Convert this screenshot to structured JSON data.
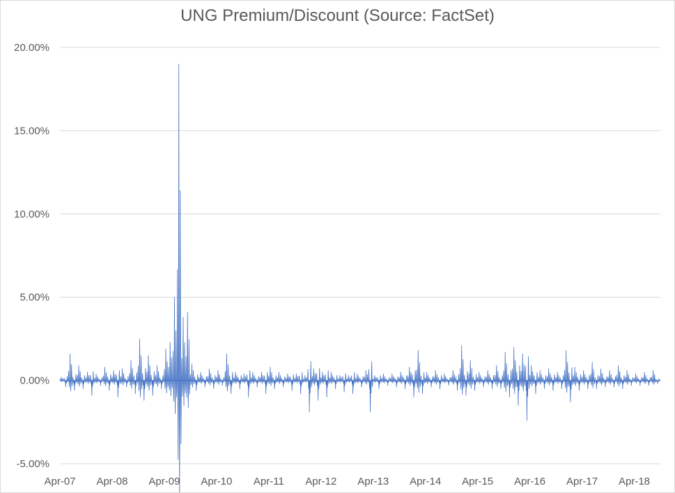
{
  "chart_data": {
    "type": "area",
    "title": "UNG Premium/Discount (Source: FactSet)",
    "xlabel": "",
    "ylabel": "",
    "x_ticks": [
      "Apr-07",
      "Apr-08",
      "Apr-09",
      "Apr-10",
      "Apr-11",
      "Apr-12",
      "Apr-13",
      "Apr-14",
      "Apr-15",
      "Apr-16",
      "Apr-17",
      "Apr-18"
    ],
    "y_ticks": [
      "20.00%",
      "15.00%",
      "10.00%",
      "5.00%",
      "0.00%",
      "-5.00%"
    ],
    "ylim": [
      -5,
      20
    ],
    "y_unit": "%",
    "grid": true,
    "legend": "none",
    "color": "#4472c4",
    "series": [
      {
        "values": [
          {
            "x": "2007-04",
            "y": 0.2
          },
          {
            "x": "2007-05",
            "y": -0.4
          },
          {
            "x": "2007-06",
            "y": 1.6
          },
          {
            "x": "2007-07",
            "y": -0.6
          },
          {
            "x": "2007-08",
            "y": 0.9
          },
          {
            "x": "2007-09",
            "y": -0.5
          },
          {
            "x": "2007-10",
            "y": 0.5
          },
          {
            "x": "2007-11",
            "y": -0.9
          },
          {
            "x": "2007-12",
            "y": 0.4
          },
          {
            "x": "2008-01",
            "y": -0.3
          },
          {
            "x": "2008-02",
            "y": 0.8
          },
          {
            "x": "2008-03",
            "y": -0.6
          },
          {
            "x": "2008-04",
            "y": 0.6
          },
          {
            "x": "2008-05",
            "y": -1.0
          },
          {
            "x": "2008-06",
            "y": 0.7
          },
          {
            "x": "2008-07",
            "y": -0.4
          },
          {
            "x": "2008-08",
            "y": 1.2
          },
          {
            "x": "2008-09",
            "y": -0.8
          },
          {
            "x": "2008-10",
            "y": 2.5
          },
          {
            "x": "2008-11",
            "y": -1.2
          },
          {
            "x": "2008-12",
            "y": 1.5
          },
          {
            "x": "2009-01",
            "y": -0.9
          },
          {
            "x": "2009-02",
            "y": 0.9
          },
          {
            "x": "2009-03",
            "y": -0.5
          },
          {
            "x": "2009-04",
            "y": 1.9
          },
          {
            "x": "2009-05",
            "y": 2.3
          },
          {
            "x": "2009-06",
            "y": 5.0
          },
          {
            "x": "2009-07",
            "y": 19.0
          },
          {
            "x": "2009-08",
            "y": 3.8
          },
          {
            "x": "2009-09",
            "y": 4.1
          },
          {
            "x": "2009-10",
            "y": 1.0
          },
          {
            "x": "2009-11",
            "y": -0.6
          },
          {
            "x": "2009-12",
            "y": 0.5
          },
          {
            "x": "2010-01",
            "y": -0.4
          },
          {
            "x": "2010-02",
            "y": 0.7
          },
          {
            "x": "2010-03",
            "y": -0.5
          },
          {
            "x": "2010-04",
            "y": 0.6
          },
          {
            "x": "2010-05",
            "y": -0.3
          },
          {
            "x": "2010-06",
            "y": 1.6
          },
          {
            "x": "2010-07",
            "y": -0.8
          },
          {
            "x": "2010-08",
            "y": 0.5
          },
          {
            "x": "2010-09",
            "y": -0.5
          },
          {
            "x": "2010-10",
            "y": 0.4
          },
          {
            "x": "2010-11",
            "y": -1.0
          },
          {
            "x": "2010-12",
            "y": 0.5
          },
          {
            "x": "2011-01",
            "y": -0.4
          },
          {
            "x": "2011-02",
            "y": 0.5
          },
          {
            "x": "2011-03",
            "y": -0.8
          },
          {
            "x": "2011-04",
            "y": 0.8
          },
          {
            "x": "2011-05",
            "y": -0.5
          },
          {
            "x": "2011-06",
            "y": 0.5
          },
          {
            "x": "2011-07",
            "y": -0.4
          },
          {
            "x": "2011-08",
            "y": 0.4
          },
          {
            "x": "2011-09",
            "y": -0.6
          },
          {
            "x": "2011-10",
            "y": 0.4
          },
          {
            "x": "2011-11",
            "y": -0.8
          },
          {
            "x": "2011-12",
            "y": 0.3
          },
          {
            "x": "2012-01",
            "y": -1.9
          },
          {
            "x": "2012-02",
            "y": 0.7
          },
          {
            "x": "2012-03",
            "y": -1.2
          },
          {
            "x": "2012-04",
            "y": 0.5
          },
          {
            "x": "2012-05",
            "y": -1.0
          },
          {
            "x": "2012-06",
            "y": 0.5
          },
          {
            "x": "2012-07",
            "y": -0.5
          },
          {
            "x": "2012-08",
            "y": 0.3
          },
          {
            "x": "2012-09",
            "y": -0.7
          },
          {
            "x": "2012-10",
            "y": 0.3
          },
          {
            "x": "2012-11",
            "y": -0.8
          },
          {
            "x": "2012-12",
            "y": 0.4
          },
          {
            "x": "2013-01",
            "y": -0.4
          },
          {
            "x": "2013-02",
            "y": 0.6
          },
          {
            "x": "2013-03",
            "y": -1.9
          },
          {
            "x": "2013-04",
            "y": 0.3
          },
          {
            "x": "2013-05",
            "y": -0.5
          },
          {
            "x": "2013-06",
            "y": 0.4
          },
          {
            "x": "2013-07",
            "y": -0.3
          },
          {
            "x": "2013-08",
            "y": 0.4
          },
          {
            "x": "2013-09",
            "y": -0.4
          },
          {
            "x": "2013-10",
            "y": 0.5
          },
          {
            "x": "2013-11",
            "y": -0.5
          },
          {
            "x": "2013-12",
            "y": 0.8
          },
          {
            "x": "2014-01",
            "y": -1.0
          },
          {
            "x": "2014-02",
            "y": 1.8
          },
          {
            "x": "2014-03",
            "y": -0.8
          },
          {
            "x": "2014-04",
            "y": 0.5
          },
          {
            "x": "2014-05",
            "y": -0.4
          },
          {
            "x": "2014-06",
            "y": 0.6
          },
          {
            "x": "2014-07",
            "y": -0.5
          },
          {
            "x": "2014-08",
            "y": 0.4
          },
          {
            "x": "2014-09",
            "y": -0.3
          },
          {
            "x": "2014-10",
            "y": 0.6
          },
          {
            "x": "2014-11",
            "y": -0.6
          },
          {
            "x": "2014-12",
            "y": 2.1
          },
          {
            "x": "2015-01",
            "y": -0.9
          },
          {
            "x": "2015-02",
            "y": 1.2
          },
          {
            "x": "2015-03",
            "y": -0.6
          },
          {
            "x": "2015-04",
            "y": 0.5
          },
          {
            "x": "2015-05",
            "y": -0.4
          },
          {
            "x": "2015-06",
            "y": 0.6
          },
          {
            "x": "2015-07",
            "y": -0.5
          },
          {
            "x": "2015-08",
            "y": 0.9
          },
          {
            "x": "2015-09",
            "y": -0.5
          },
          {
            "x": "2015-10",
            "y": 1.7
          },
          {
            "x": "2015-11",
            "y": -1.0
          },
          {
            "x": "2015-12",
            "y": 2.0
          },
          {
            "x": "2016-01",
            "y": -1.5
          },
          {
            "x": "2016-02",
            "y": 1.6
          },
          {
            "x": "2016-03",
            "y": -2.4
          },
          {
            "x": "2016-04",
            "y": 0.9
          },
          {
            "x": "2016-05",
            "y": -0.8
          },
          {
            "x": "2016-06",
            "y": 0.6
          },
          {
            "x": "2016-07",
            "y": -0.5
          },
          {
            "x": "2016-08",
            "y": 0.7
          },
          {
            "x": "2016-09",
            "y": -0.6
          },
          {
            "x": "2016-10",
            "y": 0.5
          },
          {
            "x": "2016-11",
            "y": -0.5
          },
          {
            "x": "2016-12",
            "y": 1.8
          },
          {
            "x": "2017-01",
            "y": -1.3
          },
          {
            "x": "2017-02",
            "y": 0.8
          },
          {
            "x": "2017-03",
            "y": -0.6
          },
          {
            "x": "2017-04",
            "y": 0.6
          },
          {
            "x": "2017-05",
            "y": -0.5
          },
          {
            "x": "2017-06",
            "y": 1.1
          },
          {
            "x": "2017-07",
            "y": -0.5
          },
          {
            "x": "2017-08",
            "y": 0.7
          },
          {
            "x": "2017-09",
            "y": -0.4
          },
          {
            "x": "2017-10",
            "y": 0.6
          },
          {
            "x": "2017-11",
            "y": -0.4
          },
          {
            "x": "2017-12",
            "y": 0.9
          },
          {
            "x": "2018-01",
            "y": -0.5
          },
          {
            "x": "2018-02",
            "y": 0.6
          },
          {
            "x": "2018-03",
            "y": -0.3
          },
          {
            "x": "2018-04",
            "y": 0.4
          },
          {
            "x": "2018-05",
            "y": -0.3
          },
          {
            "x": "2018-06",
            "y": 0.5
          },
          {
            "x": "2018-07",
            "y": -0.3
          },
          {
            "x": "2018-08",
            "y": 0.6
          },
          {
            "x": "2018-09",
            "y": -0.2
          }
        ]
      }
    ]
  }
}
